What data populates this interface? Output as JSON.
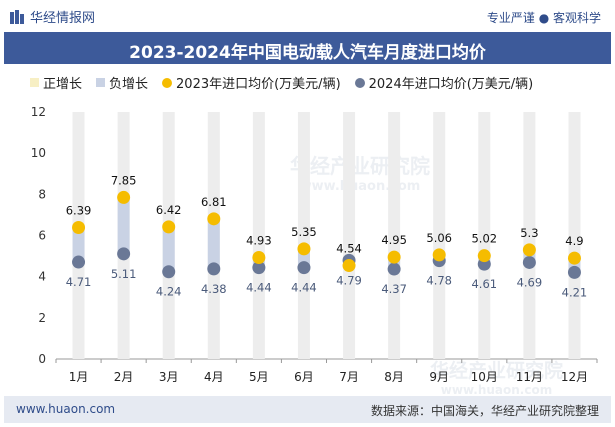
{
  "header": {
    "brand": "华经情报网",
    "tagline": "专业严谨 ● 客观科学"
  },
  "title": "2023-2024年中国电动载人汽车月度进口均价",
  "legend": {
    "increase": "正增长",
    "decrease": "负增长",
    "series_2023": "2023年进口均价(万美元/辆)",
    "series_2024": "2024年进口均价(万美元/辆)"
  },
  "footer": {
    "website": "www.huaon.com",
    "source": "数据来源：中国海关，华经产业研究院整理"
  },
  "watermarks": {
    "text1": "华经产业研究院",
    "url1": "www.huaon.com",
    "text2": "华经产业研究院",
    "url2": "www.huaon.com"
  },
  "colors": {
    "title_bg": "#3d5a9a",
    "increase": "#f7efc4",
    "decrease": "#c9d2e4",
    "track": "#ededed",
    "series_2023": "#f5bc00",
    "series_2024": "#6a7896"
  },
  "chart_data": {
    "type": "dot-plot",
    "categories": [
      "1月",
      "2月",
      "3月",
      "4月",
      "5月",
      "6月",
      "7月",
      "8月",
      "9月",
      "10月",
      "11月",
      "12月"
    ],
    "series": [
      {
        "name": "2023年进口均价(万美元/辆)",
        "values": [
          6.39,
          7.85,
          6.42,
          6.81,
          4.93,
          5.35,
          4.54,
          4.95,
          5.06,
          5.02,
          5.3,
          4.9
        ]
      },
      {
        "name": "2024年进口均价(万美元/辆)",
        "values": [
          4.71,
          5.11,
          4.24,
          4.38,
          4.44,
          4.44,
          4.79,
          4.37,
          4.78,
          4.61,
          4.69,
          4.21
        ]
      }
    ],
    "ylim": [
      0,
      12
    ],
    "yticks": [
      0,
      2,
      4,
      6,
      8,
      10,
      12
    ],
    "xlabel": "",
    "ylabel": ""
  }
}
